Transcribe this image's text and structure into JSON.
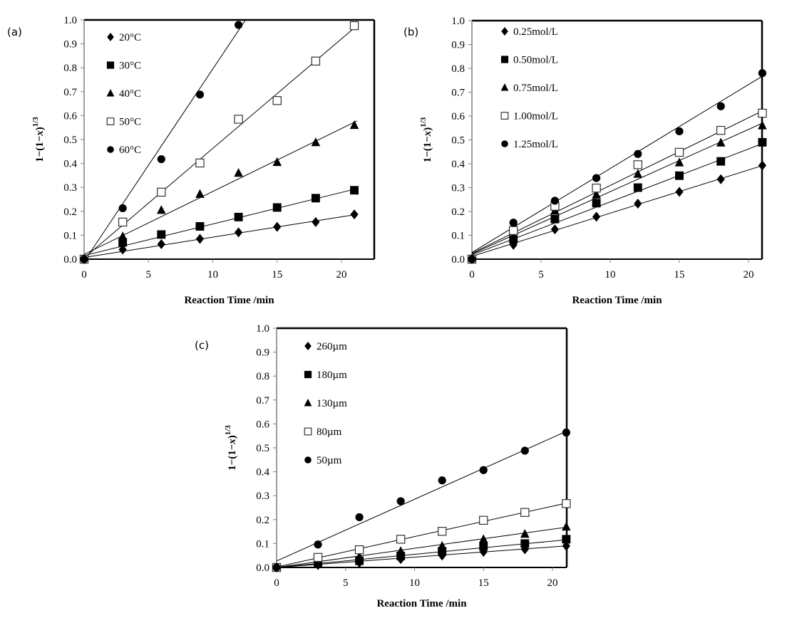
{
  "figure": {
    "colors": {
      "marker": "#000000",
      "line": "#000000",
      "axis_left": "#7f7f7f",
      "frame": "#000000",
      "background": "#ffffff"
    }
  },
  "chart_data": [
    {
      "type": "scatter",
      "panel_label": "(a)",
      "title": "",
      "xlabel": "Reaction Time /min",
      "ylabel": "1−(1−x)^1/3",
      "ylabel_parts": {
        "main": "1−(1−",
        "var": "x",
        "close": ")",
        "sup": "1/3"
      },
      "xlim": [
        0,
        21.2
      ],
      "ylim": [
        0,
        1.0
      ],
      "xticks": [
        0,
        5,
        10,
        15,
        20
      ],
      "xtick_labels": [
        "0",
        "5",
        "10",
        "15",
        "20"
      ],
      "yticks": [
        0,
        0.1,
        0.2,
        0.3,
        0.4,
        0.5,
        0.6,
        0.7,
        0.8,
        0.9,
        1.0
      ],
      "ytick_labels": [
        "0.0",
        "0.1",
        "0.2",
        "0.3",
        "0.4",
        "0.5",
        "0.6",
        "0.7",
        "0.8",
        "0.9",
        "1.0"
      ],
      "grid": false,
      "legend_position": "top-left",
      "fit_lines": true,
      "series": [
        {
          "name": "20°C",
          "marker": "diamond",
          "x": [
            0,
            3,
            6,
            9,
            12,
            15,
            18,
            21
          ],
          "y": [
            0,
            0.04,
            0.063,
            0.085,
            0.112,
            0.135,
            0.155,
            0.187
          ],
          "fit": {
            "slope": 0.0085,
            "intercept": 0.007
          }
        },
        {
          "name": "30°C",
          "marker": "square",
          "x": [
            0,
            3,
            6,
            9,
            12,
            15,
            18,
            21
          ],
          "y": [
            0,
            0.07,
            0.103,
            0.137,
            0.176,
            0.216,
            0.255,
            0.288
          ],
          "fit": {
            "slope": 0.0132,
            "intercept": 0.015
          }
        },
        {
          "name": "40°C",
          "marker": "triangle",
          "x": [
            0,
            3,
            6,
            9,
            12,
            15,
            18,
            21
          ],
          "y": [
            0,
            0.095,
            0.205,
            0.272,
            0.36,
            0.405,
            0.488,
            0.56
          ],
          "fit": {
            "slope": 0.0263,
            "intercept": 0.02
          }
        },
        {
          "name": "50°C",
          "marker": "open-square",
          "x": [
            0,
            3,
            6,
            9,
            12,
            15,
            18,
            21
          ],
          "y": [
            0,
            0.155,
            0.28,
            0.402,
            0.585,
            0.663,
            0.828,
            0.976
          ],
          "fit": {
            "slope": 0.0458,
            "intercept": 0.005
          }
        },
        {
          "name": "60°C",
          "marker": "circle",
          "x": [
            0,
            3,
            6,
            9,
            12
          ],
          "y": [
            0,
            0.213,
            0.418,
            0.688,
            0.979
          ],
          "fit": {
            "slope": 0.0805,
            "intercept": -0.01
          }
        }
      ]
    },
    {
      "type": "scatter",
      "panel_label": "(b)",
      "title": "",
      "xlabel": "Reaction Time /min",
      "ylabel": "1−(1−x)^1/3",
      "ylabel_parts": {
        "main": "1−(1−",
        "var": "x",
        "close": ")",
        "sup": "1/3"
      },
      "xlim": [
        0,
        21.2
      ],
      "ylim": [
        0,
        1.0
      ],
      "xticks": [
        0,
        5,
        10,
        15,
        20
      ],
      "xtick_labels": [
        "0",
        "5",
        "10",
        "15",
        "20"
      ],
      "yticks": [
        0,
        0.1,
        0.2,
        0.3,
        0.4,
        0.5,
        0.6,
        0.7,
        0.8,
        0.9,
        1.0
      ],
      "ytick_labels": [
        "0.0",
        "0.1",
        "0.2",
        "0.3",
        "0.4",
        "0.5",
        "0.6",
        "0.7",
        "0.8",
        "0.9",
        "1.0"
      ],
      "grid": false,
      "legend_position": "top-left",
      "fit_lines": true,
      "series": [
        {
          "name": "0.25mol/L",
          "marker": "diamond",
          "x": [
            0,
            3,
            6,
            9,
            12,
            15,
            18,
            21
          ],
          "y": [
            0,
            0.06,
            0.125,
            0.178,
            0.233,
            0.282,
            0.335,
            0.393
          ],
          "fit": {
            "slope": 0.0181,
            "intercept": 0.012
          }
        },
        {
          "name": "0.50mol/L",
          "marker": "square",
          "x": [
            0,
            3,
            6,
            9,
            12,
            15,
            18,
            21
          ],
          "y": [
            0,
            0.083,
            0.168,
            0.235,
            0.3,
            0.35,
            0.41,
            0.49
          ],
          "fit": {
            "slope": 0.0222,
            "intercept": 0.018
          }
        },
        {
          "name": "0.75mol/L",
          "marker": "triangle",
          "x": [
            0,
            3,
            6,
            9,
            12,
            15,
            18,
            21
          ],
          "y": [
            0,
            0.095,
            0.203,
            0.27,
            0.357,
            0.405,
            0.488,
            0.56
          ],
          "fit": {
            "slope": 0.0261,
            "intercept": 0.022
          }
        },
        {
          "name": "1.00mol/L",
          "marker": "open-square",
          "x": [
            0,
            3,
            6,
            9,
            12,
            15,
            18,
            21
          ],
          "y": [
            0,
            0.12,
            0.222,
            0.298,
            0.396,
            0.448,
            0.54,
            0.612
          ],
          "fit": {
            "slope": 0.0284,
            "intercept": 0.025
          }
        },
        {
          "name": "1.25mol/L",
          "marker": "circle",
          "x": [
            0,
            3,
            6,
            9,
            12,
            15,
            18,
            21
          ],
          "y": [
            0,
            0.153,
            0.245,
            0.34,
            0.441,
            0.536,
            0.641,
            0.78
          ],
          "fit": {
            "slope": 0.0352,
            "intercept": 0.028
          }
        }
      ]
    },
    {
      "type": "scatter",
      "panel_label": "(c)",
      "title": "",
      "xlabel": "Reaction Time /min",
      "ylabel": "1−(1−x)^1/3",
      "ylabel_parts": {
        "main": "1−(1−",
        "var": "x",
        "close": ")",
        "sup": "1/3"
      },
      "xlim": [
        0,
        21.2
      ],
      "ylim": [
        0,
        1.0
      ],
      "xticks": [
        0,
        5,
        10,
        15,
        20
      ],
      "xtick_labels": [
        "0",
        "5",
        "10",
        "15",
        "20"
      ],
      "yticks": [
        0,
        0.1,
        0.2,
        0.3,
        0.4,
        0.5,
        0.6,
        0.7,
        0.8,
        0.9,
        1.0
      ],
      "ytick_labels": [
        "0.0",
        "0.1",
        "0.2",
        "0.3",
        "0.4",
        "0.5",
        "0.6",
        "0.7",
        "0.8",
        "0.9",
        "1.0"
      ],
      "grid": false,
      "legend_position": "top-left",
      "fit_lines": true,
      "series": [
        {
          "name": "260µm",
          "marker": "diamond",
          "x": [
            0,
            3,
            6,
            9,
            12,
            15,
            18,
            21
          ],
          "y": [
            0,
            0.01,
            0.02,
            0.035,
            0.05,
            0.065,
            0.076,
            0.09
          ],
          "fit": {
            "slope": 0.0043,
            "intercept": 0.0
          }
        },
        {
          "name": "180µm",
          "marker": "square",
          "x": [
            0,
            3,
            6,
            9,
            12,
            15,
            18,
            21
          ],
          "y": [
            0,
            0.015,
            0.028,
            0.048,
            0.068,
            0.088,
            0.1,
            0.118
          ],
          "fit": {
            "slope": 0.0055,
            "intercept": 0.0
          }
        },
        {
          "name": "130µm",
          "marker": "triangle",
          "x": [
            0,
            3,
            6,
            9,
            12,
            15,
            18,
            21
          ],
          "y": [
            0,
            0.02,
            0.045,
            0.068,
            0.09,
            0.118,
            0.14,
            0.17
          ],
          "fit": {
            "slope": 0.008,
            "intercept": 0.0
          }
        },
        {
          "name": "80µm",
          "marker": "open-square",
          "x": [
            0,
            3,
            6,
            9,
            12,
            15,
            18,
            21
          ],
          "y": [
            0,
            0.042,
            0.074,
            0.118,
            0.151,
            0.197,
            0.23,
            0.267
          ],
          "fit": {
            "slope": 0.0127,
            "intercept": 0.002
          }
        },
        {
          "name": "50µm",
          "marker": "circle",
          "x": [
            0,
            3,
            6,
            9,
            12,
            15,
            18,
            21
          ],
          "y": [
            0,
            0.096,
            0.21,
            0.277,
            0.364,
            0.407,
            0.488,
            0.564
          ],
          "fit": {
            "slope": 0.0258,
            "intercept": 0.027
          }
        }
      ]
    }
  ]
}
